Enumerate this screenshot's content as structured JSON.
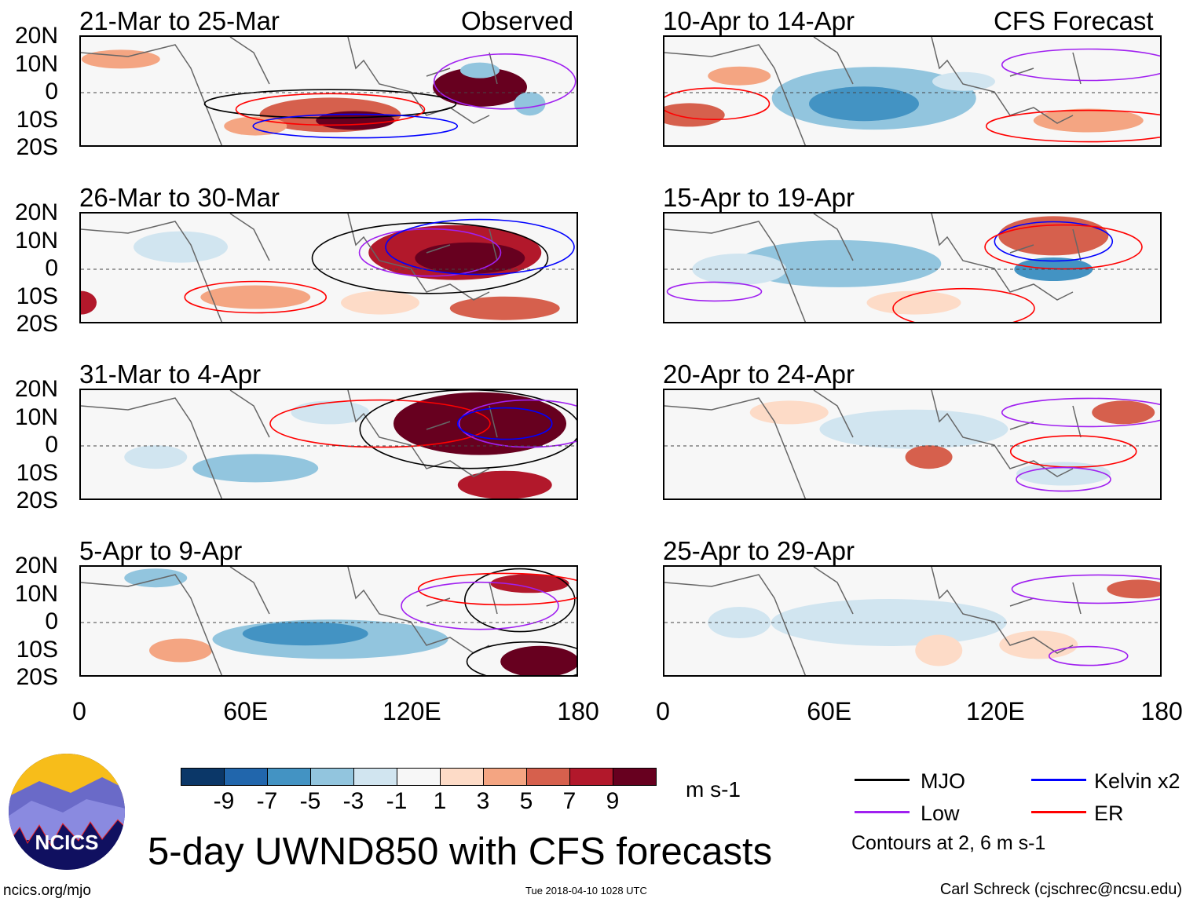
{
  "observed_label": "Observed",
  "forecast_label": "CFS Forecast",
  "panels_left": [
    "21-Mar to 25-Mar",
    "26-Mar to 30-Mar",
    "31-Mar to 4-Apr",
    "5-Apr to 9-Apr"
  ],
  "panels_right": [
    "10-Apr to 14-Apr",
    "15-Apr to 19-Apr",
    "20-Apr to 24-Apr",
    "25-Apr to 29-Apr"
  ],
  "lat_labels": [
    "20N",
    "10N",
    "0",
    "10S",
    "20S"
  ],
  "lon_labels": [
    "0",
    "60E",
    "120E",
    "180"
  ],
  "colorbar": {
    "colors": [
      "#0b3768",
      "#2166ac",
      "#4393c3",
      "#92c5de",
      "#d1e5f0",
      "#f7f7f7",
      "#fddbc7",
      "#f4a582",
      "#d6604d",
      "#b2182b",
      "#67001f"
    ],
    "labels": [
      "-9",
      "-7",
      "-5",
      "-3",
      "-1",
      "1",
      "3",
      "5",
      "7",
      "9"
    ],
    "units": "m s-1"
  },
  "legend": {
    "items": [
      {
        "label": "MJO",
        "color": "#000000"
      },
      {
        "label": "Kelvin x2",
        "color": "#0000ff"
      },
      {
        "label": "Low",
        "color": "#a020f0"
      },
      {
        "label": "ER",
        "color": "#ff0000"
      }
    ],
    "note": "Contours at 2, 6 m s-1"
  },
  "logo_text": "NCICS",
  "title": "5-day UWND850 with CFS forecasts",
  "footer": {
    "url": "ncics.org/mjo",
    "timestamp": "Tue 2018-04-10 1028 UTC",
    "author": "Carl Schreck (cjschrec@ncsu.edu)"
  }
}
